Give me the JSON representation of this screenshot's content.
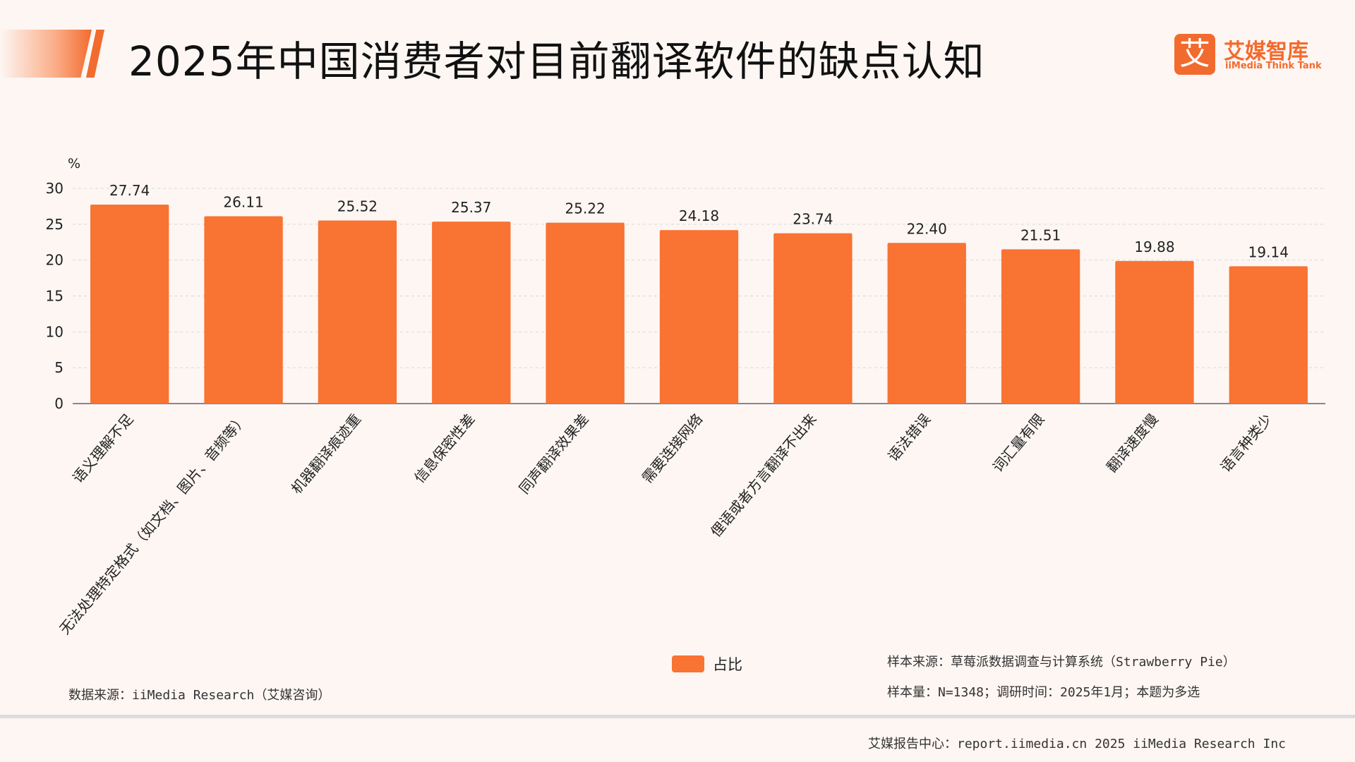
{
  "header": {
    "title": "2025年中国消费者对目前翻译软件的缺点认知",
    "logo_mark": "艾",
    "logo_cn": "艾媒智库",
    "logo_en": "iiMedia Think Tank"
  },
  "chart_data": {
    "type": "bar",
    "title": "2025年中国消费者对目前翻译软件的缺点认知",
    "ylabel": "%",
    "ylim": [
      0,
      30
    ],
    "yticks": [
      0,
      5,
      10,
      15,
      20,
      25,
      30
    ],
    "grid": true,
    "legend_position": "bottom",
    "categories": [
      "语义理解不足",
      "无法处理特定格式（如文档、图片、音频等）",
      "机器翻译痕迹重",
      "信息保密性差",
      "同声翻译效果差",
      "需要连接网络",
      "俚语或者方言翻译不出来",
      "语法错误",
      "词汇量有限",
      "翻译速度慢",
      "语言种类少"
    ],
    "series": [
      {
        "name": "占比",
        "values": [
          27.74,
          26.11,
          25.52,
          25.37,
          25.22,
          24.18,
          23.74,
          22.4,
          21.51,
          19.88,
          19.14
        ],
        "color": "#f97332"
      }
    ],
    "value_labels": [
      "27.74",
      "26.11",
      "25.52",
      "25.37",
      "25.22",
      "24.18",
      "23.74",
      "22.40",
      "21.51",
      "19.88",
      "19.14"
    ]
  },
  "legend": {
    "label": "占比",
    "color": "#f97332"
  },
  "notes": {
    "data_source": "数据来源：iiMedia Research（艾媒咨询）",
    "sample_source": "样本来源：草莓派数据调查与计算系统（Strawberry Pie）",
    "sample_size": "样本量：N=1348；调研时间：2025年1月；本题为多选",
    "footer": "艾媒报告中心：report.iimedia.cn   2025 iiMedia Research Inc"
  },
  "colors": {
    "accent": "#f26b2e",
    "bar": "#f97332",
    "background": "#fdf6f3"
  }
}
